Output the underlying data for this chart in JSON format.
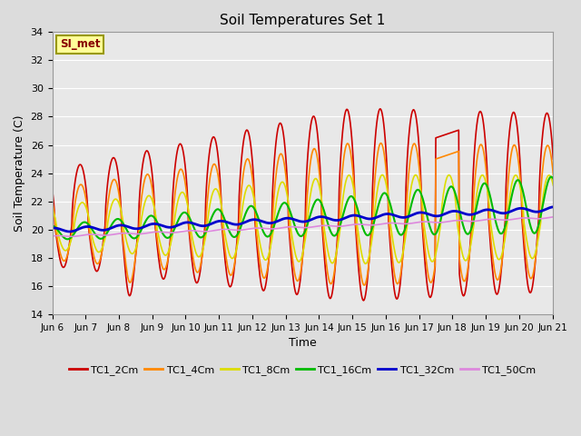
{
  "title": "Soil Temperatures Set 1",
  "xlabel": "Time",
  "ylabel": "Soil Temperature (C)",
  "ylim": [
    14,
    34
  ],
  "yticks": [
    14,
    16,
    18,
    20,
    22,
    24,
    26,
    28,
    30,
    32,
    34
  ],
  "bg_color": "#dcdcdc",
  "plot_bg": "#e8e8e8",
  "grid_color": "#ffffff",
  "annotation_text": "SI_met",
  "annotation_bg": "#ffff99",
  "annotation_border": "#999900",
  "lines": {
    "TC1_2Cm": {
      "color": "#cc0000",
      "lw": 1.2
    },
    "TC1_4Cm": {
      "color": "#ff8800",
      "lw": 1.2
    },
    "TC1_8Cm": {
      "color": "#dddd00",
      "lw": 1.2
    },
    "TC1_16Cm": {
      "color": "#00bb00",
      "lw": 1.5
    },
    "TC1_32Cm": {
      "color": "#0000cc",
      "lw": 2.0
    },
    "TC1_50Cm": {
      "color": "#dd88dd",
      "lw": 1.2
    }
  }
}
